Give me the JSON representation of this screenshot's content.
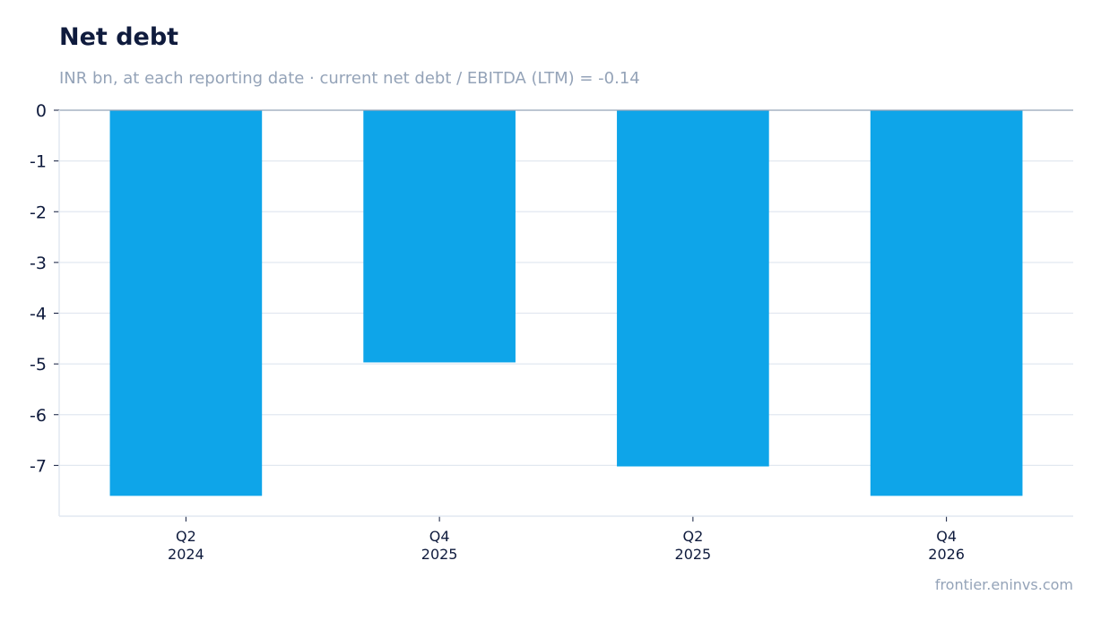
{
  "header": {
    "title": "Net debt",
    "subtitle": "INR bn, at each reporting date · current net debt / EBITDA (LTM) = -0.14"
  },
  "footer": {
    "source": "frontier.eninvs.com"
  },
  "colors": {
    "bar": "#0ea5e9",
    "grid": "#e2e8f0",
    "axis": "#94a3b8",
    "text": "#0f1b3d"
  },
  "chart_data": {
    "type": "bar",
    "title": "Net debt",
    "subtitle": "INR bn, at each reporting date · current net debt / EBITDA (LTM) = -0.14",
    "categories": [
      [
        "Q2",
        "2024"
      ],
      [
        "Q4",
        "2025"
      ],
      [
        "Q2",
        "2025"
      ],
      [
        "Q4",
        "2026"
      ]
    ],
    "values": [
      -7.6,
      -4.97,
      -7.02,
      -7.6
    ],
    "yticks": [
      0,
      -1,
      -2,
      -3,
      -4,
      -5,
      -6,
      -7
    ],
    "ylim": [
      -8,
      0
    ],
    "grid": true,
    "xlabel": "",
    "ylabel": ""
  }
}
